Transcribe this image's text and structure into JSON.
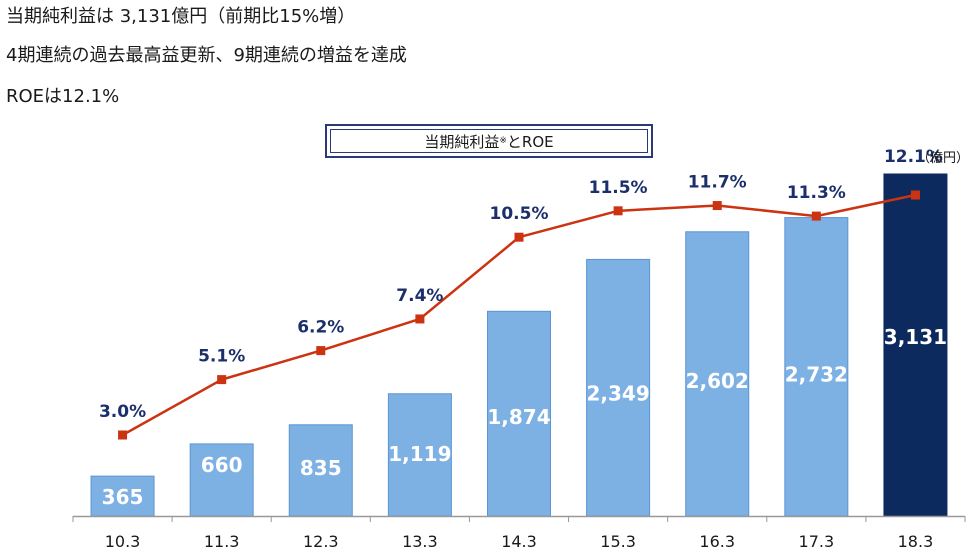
{
  "headlines": {
    "line1": "当期純利益は 3,131億円（前期比15%増）",
    "line2": "4期連続の過去最高益更新、9期連続の増益を達成",
    "line3": "ROEは12.1%"
  },
  "chart_title": {
    "main": "当期純利益",
    "note": "※",
    "suffix": "とROE"
  },
  "chart_data": {
    "type": "bar",
    "title": "当期純利益※とROE",
    "unit_label": "（億円）",
    "categories": [
      "10.3",
      "11.3",
      "12.3",
      "13.3",
      "14.3",
      "15.3",
      "16.3",
      "17.3",
      "18.3"
    ],
    "series": [
      {
        "name": "当期純利益",
        "type": "bar",
        "values": [
          365,
          660,
          835,
          1119,
          1874,
          2349,
          2602,
          2732,
          3131
        ],
        "labels": [
          "365",
          "660",
          "835",
          "1,119",
          "1,874",
          "2,349",
          "2,602",
          "2,732",
          "3,131"
        ]
      },
      {
        "name": "ROE",
        "type": "line",
        "values": [
          3.0,
          5.1,
          6.2,
          7.4,
          10.5,
          11.5,
          11.7,
          11.3,
          12.1
        ],
        "labels": [
          "3.0%",
          "5.1%",
          "6.2%",
          "7.4%",
          "10.5%",
          "11.5%",
          "11.7%",
          "11.3%",
          "12.1%"
        ]
      }
    ],
    "highlight_index": 8,
    "ylim_bar": [
      0,
      3131
    ],
    "ylim_line": [
      0,
      12.1
    ],
    "colors": {
      "bar": "#7eb1e3",
      "bar_highlight": "#0d2a5e",
      "line": "#cc3311",
      "label_dark": "#1b2f6b",
      "label_light": "#ffffff",
      "axis": "#999999"
    }
  }
}
